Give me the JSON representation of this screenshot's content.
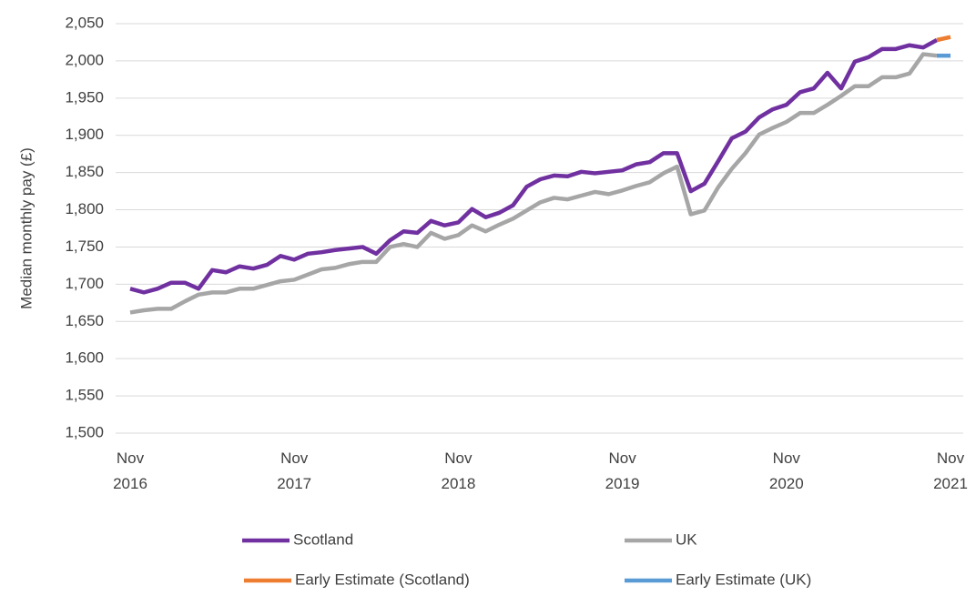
{
  "chart_data": {
    "type": "line",
    "y_label": "Median monthly pay (£)",
    "categories": [
      "Nov 2016",
      null,
      null,
      null,
      null,
      null,
      null,
      null,
      null,
      null,
      null,
      null,
      "Nov 2017",
      null,
      null,
      null,
      null,
      null,
      null,
      null,
      null,
      null,
      null,
      null,
      "Nov 2018",
      null,
      null,
      null,
      null,
      null,
      null,
      null,
      null,
      null,
      null,
      null,
      "Nov 2019",
      null,
      null,
      null,
      null,
      null,
      null,
      null,
      null,
      null,
      null,
      null,
      "Nov 2020",
      null,
      null,
      null,
      null,
      null,
      null,
      null,
      null,
      null,
      null,
      null,
      "Nov 2021"
    ],
    "series": [
      {
        "name": "Scotland",
        "color": "#7030a0",
        "values": [
          1694,
          1689,
          1694,
          1702,
          1702,
          1694,
          1719,
          1716,
          1724,
          1721,
          1726,
          1738,
          1733,
          1741,
          1743,
          1746,
          1748,
          1750,
          1741,
          1759,
          1771,
          1769,
          1785,
          1779,
          1783,
          1801,
          1790,
          1796,
          1806,
          1831,
          1841,
          1846,
          1845,
          1851,
          1849,
          1851,
          1853,
          1861,
          1864,
          1876,
          1876,
          1825,
          1835,
          1865,
          1896,
          1905,
          1924,
          1935,
          1941,
          1958,
          1963,
          1984,
          1963,
          1999,
          2005,
          2016,
          2016,
          2021,
          2018,
          2028,
          null
        ]
      },
      {
        "name": "UK",
        "color": "#a6a6a6",
        "values": [
          1662,
          1665,
          1667,
          1667,
          1677,
          1686,
          1689,
          1689,
          1694,
          1694,
          1699,
          1704,
          1706,
          1713,
          1720,
          1722,
          1727,
          1730,
          1730,
          1750,
          1754,
          1750,
          1769,
          1761,
          1766,
          1779,
          1771,
          1780,
          1788,
          1799,
          1810,
          1816,
          1814,
          1819,
          1824,
          1821,
          1826,
          1832,
          1837,
          1849,
          1858,
          1794,
          1799,
          1830,
          1855,
          1876,
          1901,
          1910,
          1918,
          1930,
          1930,
          1941,
          1953,
          1966,
          1966,
          1978,
          1978,
          1983,
          2009,
          2007,
          null
        ]
      },
      {
        "name": "Early Estimate (Scotland)",
        "color": "#ed7d31",
        "values": [
          null,
          null,
          null,
          null,
          null,
          null,
          null,
          null,
          null,
          null,
          null,
          null,
          null,
          null,
          null,
          null,
          null,
          null,
          null,
          null,
          null,
          null,
          null,
          null,
          null,
          null,
          null,
          null,
          null,
          null,
          null,
          null,
          null,
          null,
          null,
          null,
          null,
          null,
          null,
          null,
          null,
          null,
          null,
          null,
          null,
          null,
          null,
          null,
          null,
          null,
          null,
          null,
          null,
          null,
          null,
          null,
          null,
          null,
          null,
          2028,
          2032
        ]
      },
      {
        "name": "Early Estimate (UK)",
        "color": "#5b9bd5",
        "values": [
          null,
          null,
          null,
          null,
          null,
          null,
          null,
          null,
          null,
          null,
          null,
          null,
          null,
          null,
          null,
          null,
          null,
          null,
          null,
          null,
          null,
          null,
          null,
          null,
          null,
          null,
          null,
          null,
          null,
          null,
          null,
          null,
          null,
          null,
          null,
          null,
          null,
          null,
          null,
          null,
          null,
          null,
          null,
          null,
          null,
          null,
          null,
          null,
          null,
          null,
          null,
          null,
          null,
          null,
          null,
          null,
          null,
          null,
          null,
          2007,
          2007
        ]
      }
    ],
    "ylim": [
      1500,
      2050
    ],
    "yticks": [
      {
        "value": 1500,
        "label": "1,500"
      },
      {
        "value": 1550,
        "label": "1,550"
      },
      {
        "value": 1600,
        "label": "1,600"
      },
      {
        "value": 1650,
        "label": "1,650"
      },
      {
        "value": 1700,
        "label": "1,700"
      },
      {
        "value": 1750,
        "label": "1,750"
      },
      {
        "value": 1800,
        "label": "1,800"
      },
      {
        "value": 1850,
        "label": "1,850"
      },
      {
        "value": 1900,
        "label": "1,900"
      },
      {
        "value": 1950,
        "label": "1,950"
      },
      {
        "value": 2000,
        "label": "2,000"
      },
      {
        "value": 2050,
        "label": "2,050"
      }
    ],
    "grid": true
  }
}
